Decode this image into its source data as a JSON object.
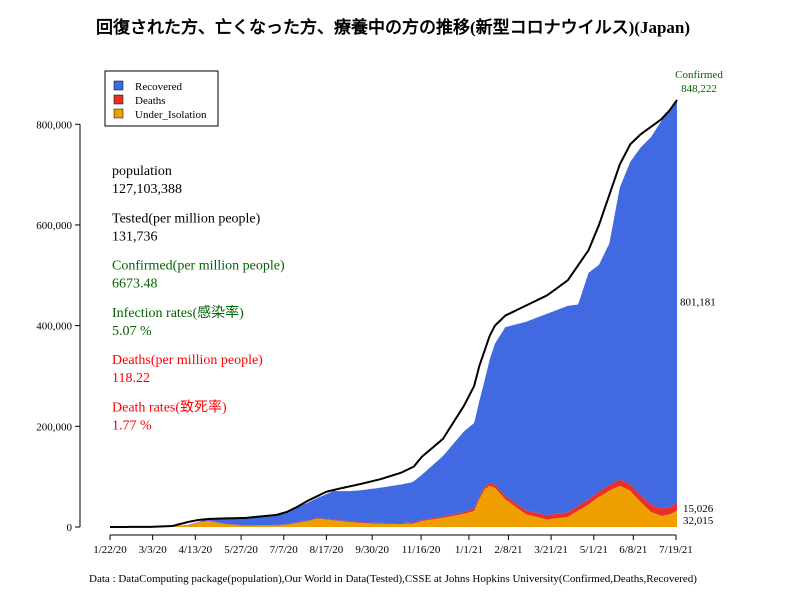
{
  "chart_data": {
    "type": "area",
    "title": "回復された方、亡くなった方、療養中の方の推移(新型コロナウイルス)(Japan)",
    "source": "Data : DataComputing package(population),Our World in Data(Tested),CSSE at Johns Hopkins University(Confirmed,Deaths,Recovered)",
    "x_tick_labels": [
      "1/22/20",
      "3/3/20",
      "4/13/20",
      "5/27/20",
      "7/7/20",
      "8/17/20",
      "9/30/20",
      "11/16/20",
      "1/1/21",
      "2/8/21",
      "3/21/21",
      "5/1/21",
      "6/8/21",
      "7/19/21"
    ],
    "x_tick_days": [
      0,
      41,
      82,
      126,
      167,
      208,
      252,
      299,
      345,
      383,
      424,
      465,
      503,
      544
    ],
    "ylim": [
      0,
      848222
    ],
    "y_ticks": [
      0,
      200000,
      400000,
      600000,
      800000
    ],
    "y_tick_labels": [
      "0",
      "200,000",
      "400,000",
      "600,000",
      "800,000"
    ],
    "series": [
      {
        "name": "Under_Isolation",
        "color": "#EFA000",
        "x": [
          0,
          40,
          60,
          75,
          85,
          95,
          110,
          130,
          160,
          170,
          180,
          190,
          200,
          208,
          220,
          240,
          260,
          280,
          292,
          300,
          320,
          340,
          350,
          355,
          360,
          365,
          370,
          380,
          400,
          420,
          440,
          460,
          470,
          480,
          490,
          500,
          510,
          520,
          530,
          538,
          545
        ],
        "values": [
          0,
          50,
          900,
          3000,
          8500,
          12000,
          6000,
          2200,
          2800,
          4500,
          8000,
          12000,
          17000,
          15000,
          12000,
          8000,
          6500,
          6000,
          7000,
          12000,
          18000,
          26000,
          32000,
          55000,
          75000,
          82000,
          78000,
          55000,
          25000,
          15000,
          20000,
          45000,
          60000,
          72000,
          82000,
          72000,
          50000,
          30000,
          22000,
          25000,
          32015
        ]
      },
      {
        "name": "Deaths",
        "color": "#E8302A",
        "x": [
          0,
          40,
          80,
          120,
          160,
          200,
          250,
          300,
          340,
          360,
          380,
          420,
          460,
          500,
          520,
          540,
          545
        ],
        "values": [
          0,
          10,
          500,
          900,
          1000,
          1100,
          1500,
          2100,
          3500,
          5500,
          7000,
          8500,
          10000,
          13000,
          14500,
          15000,
          15026
        ]
      },
      {
        "name": "Recovered",
        "color": "#4169E1",
        "x": [
          0,
          40,
          85,
          120,
          160,
          200,
          215,
          230,
          260,
          290,
          300,
          320,
          340,
          350,
          360,
          370,
          380,
          400,
          420,
          440,
          450,
          460,
          470,
          480,
          490,
          500,
          510,
          520,
          530,
          538,
          545
        ],
        "values": [
          0,
          0,
          1000,
          14000,
          20000,
          40000,
          57000,
          60000,
          70000,
          80000,
          90000,
          120000,
          160000,
          170000,
          210000,
          280000,
          335000,
          375000,
          400000,
          410000,
          400000,
          450000,
          450000,
          480000,
          580000,
          640000,
          690000,
          730000,
          770000,
          790000,
          801181
        ]
      }
    ],
    "total_line": {
      "name": "Confirmed",
      "color": "#000000",
      "x": [
        0,
        40,
        60,
        75,
        85,
        95,
        110,
        130,
        160,
        170,
        180,
        190,
        200,
        208,
        220,
        240,
        260,
        280,
        292,
        300,
        320,
        340,
        350,
        355,
        360,
        365,
        370,
        380,
        400,
        420,
        440,
        460,
        470,
        480,
        490,
        500,
        510,
        520,
        530,
        538,
        545
      ],
      "values": [
        0,
        300,
        2000,
        10000,
        14000,
        16000,
        17000,
        18000,
        24000,
        30000,
        40000,
        52000,
        62000,
        70000,
        76000,
        85000,
        95000,
        108000,
        120000,
        140000,
        175000,
        240000,
        280000,
        320000,
        350000,
        380000,
        400000,
        420000,
        440000,
        460000,
        490000,
        550000,
        600000,
        660000,
        720000,
        760000,
        780000,
        795000,
        810000,
        828000,
        848222
      ]
    },
    "legend": {
      "position": "top-left",
      "entries": [
        {
          "label": "Recovered",
          "color": "#4169E1"
        },
        {
          "label": "Deaths",
          "color": "#E8302A"
        },
        {
          "label": "Under_Isolation",
          "color": "#EFA000"
        }
      ]
    },
    "annotations": {
      "confirmed_label": "Confirmed",
      "confirmed_value": "848,222",
      "recovered_value": "801,181",
      "deaths_value": "15,026",
      "isolation_value": "32,015"
    },
    "stats": [
      {
        "label": "population",
        "value": "127,103,388",
        "color": "#000000"
      },
      {
        "label": "Tested(per million people)",
        "value": "131,736",
        "color": "#000000"
      },
      {
        "label": "Confirmed(per million people)",
        "value": "6673.48",
        "color": "#006400"
      },
      {
        "label": "Infection rates(感染率)",
        "value": "5.07 %",
        "color": "#006400"
      },
      {
        "label": "Deaths(per million people)",
        "value": "118.22",
        "color": "#FF0000"
      },
      {
        "label": "Death rates(致死率)",
        "value": "1.77 %",
        "color": "#FF0000"
      }
    ]
  }
}
